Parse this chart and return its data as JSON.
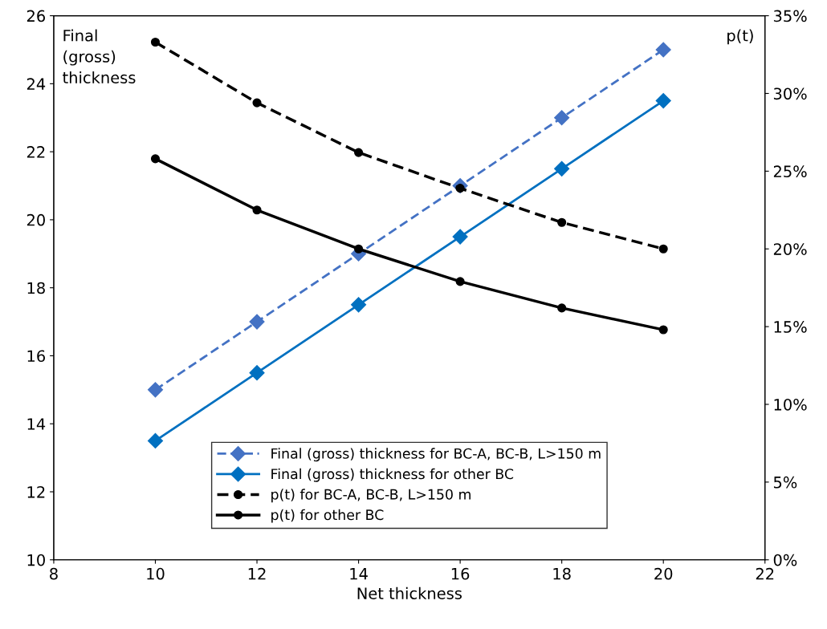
{
  "chart_data": {
    "type": "line",
    "xlabel": "Net thickness",
    "ylabel": "Final\n(gross)\nthickness",
    "y2label": "p(t)",
    "x": [
      10,
      12,
      14,
      16,
      18,
      20
    ],
    "xlim": [
      8,
      22
    ],
    "xticks": [
      8,
      10,
      12,
      14,
      16,
      18,
      20,
      22
    ],
    "ylim": [
      10,
      26
    ],
    "yticks": [
      10,
      12,
      14,
      16,
      18,
      20,
      22,
      24,
      26
    ],
    "y2lim": [
      0,
      35
    ],
    "y2ticks": [
      {
        "value": 0,
        "label": "0%"
      },
      {
        "value": 5,
        "label": "5%"
      },
      {
        "value": 10,
        "label": "10%"
      },
      {
        "value": 15,
        "label": "15%"
      },
      {
        "value": 20,
        "label": "20%"
      },
      {
        "value": 25,
        "label": "25%"
      },
      {
        "value": 30,
        "label": "30%"
      },
      {
        "value": 35,
        "label": "35%"
      }
    ],
    "grid": false,
    "legend": "bottom",
    "series": [
      {
        "name": "Final (gross) thickness for BC-A, BC-B, L>150 m",
        "color": "#4472c4",
        "line_style": "dashed",
        "marker": "diamond",
        "values": [
          15,
          17,
          19,
          21,
          23,
          25
        ]
      },
      {
        "name": "Final (gross) thickness for other BC",
        "color": "#0070c0",
        "line_style": "solid",
        "marker": "diamond",
        "values": [
          13.5,
          15.5,
          17.5,
          19.5,
          21.5,
          23.5
        ]
      },
      {
        "name": "p(t) for BC-A, BC-B, L>150 m",
        "color": "#000000",
        "line_style": "dashed",
        "marker": "circle",
        "axis": "y2",
        "values": [
          33.3,
          29.4,
          26.2,
          23.9,
          21.7,
          20.0
        ]
      },
      {
        "name": "p(t) for other BC",
        "color": "#000000",
        "line_style": "solid",
        "marker": "circle",
        "axis": "y2",
        "values": [
          25.8,
          22.5,
          20.0,
          17.9,
          16.2,
          14.8
        ]
      }
    ]
  }
}
